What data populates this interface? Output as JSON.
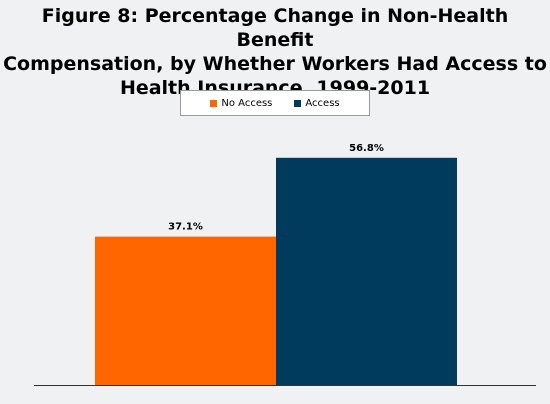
{
  "title_lines": [
    "Figure 8: Percentage Change in Non-Health Benefit",
    "Compensation, by Whether Workers Had Access to",
    "Health Insurance, 1999-2011"
  ],
  "chart_data": {
    "type": "bar",
    "categories": [
      "No Access",
      "Access"
    ],
    "values": [
      37.1,
      56.8
    ],
    "value_labels": [
      "37.1%",
      "56.8%"
    ],
    "colors": [
      "#ff6600",
      "#003a5c"
    ],
    "ylim": [
      0,
      60
    ],
    "grid": false,
    "legend": {
      "placement": "top-center",
      "entries": [
        {
          "name": "No Access",
          "color": "#ff6600"
        },
        {
          "name": "Access",
          "color": "#003a5c"
        }
      ]
    },
    "xlabel": "",
    "ylabel": ""
  }
}
